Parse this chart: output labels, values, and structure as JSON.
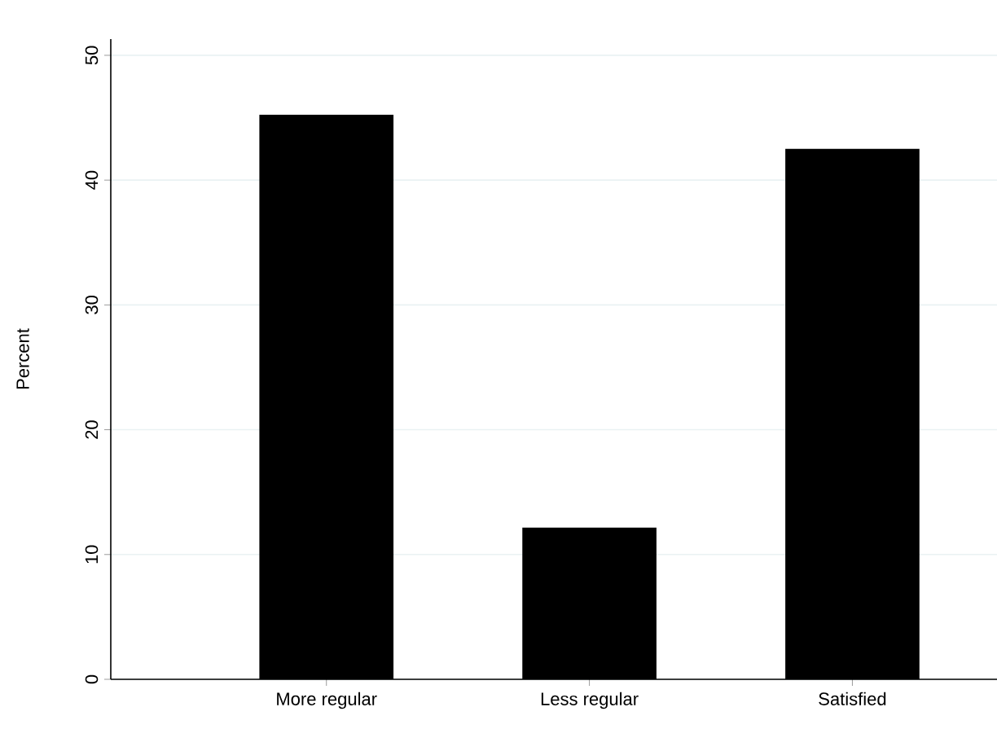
{
  "chart_data": {
    "type": "bar",
    "ylabel": "Percent",
    "categories": [
      "More regular",
      "Less regular",
      "Satisfied"
    ],
    "values": [
      45.25,
      12.15,
      42.5
    ],
    "color": "#000000",
    "ylim": [
      0,
      51.3
    ],
    "yticks": [
      0,
      10,
      20,
      30,
      40,
      50
    ],
    "grid": "y"
  }
}
